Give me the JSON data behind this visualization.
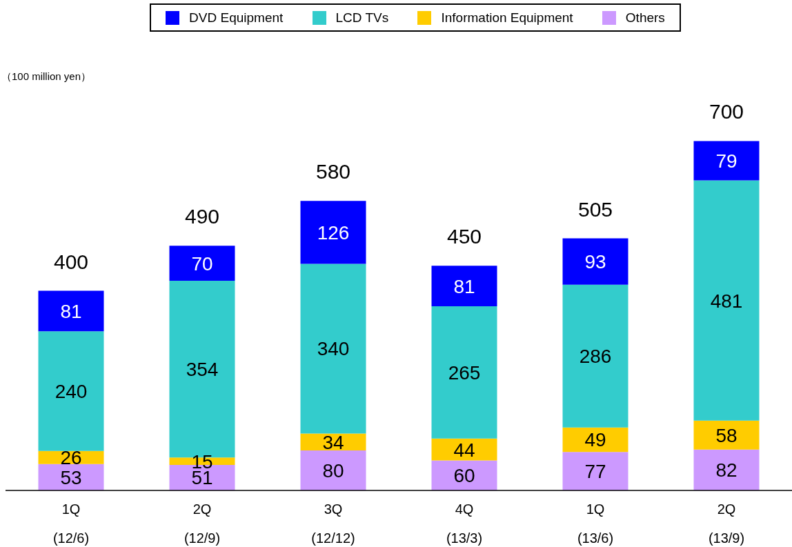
{
  "chart_data": {
    "type": "bar",
    "stacked": true,
    "annotations": [
      "（100 million yen）"
    ],
    "categories": [
      "1Q\n(12/6)",
      "2Q\n(12/9)",
      "3Q\n(12/12)",
      "4Q\n(13/3)",
      "1Q\n(13/6)",
      "2Q\n(13/9)"
    ],
    "series": [
      {
        "name": "Others",
        "color": "#cc99ff",
        "values": [
          53,
          51,
          80,
          60,
          77,
          82
        ]
      },
      {
        "name": "Information Equipment",
        "color": "#ffcc00",
        "values": [
          26,
          15,
          34,
          44,
          49,
          58
        ]
      },
      {
        "name": "LCD TVs",
        "color": "#33cccc",
        "values": [
          240,
          354,
          340,
          265,
          286,
          481
        ]
      },
      {
        "name": "DVD Equipment",
        "color": "#0000ff",
        "values": [
          81,
          70,
          126,
          81,
          93,
          79
        ]
      }
    ],
    "totals": [
      "400",
      "490",
      "580",
      "450",
      "505",
      "700"
    ],
    "data_labels": true,
    "legend": "top",
    "grid": false
  }
}
